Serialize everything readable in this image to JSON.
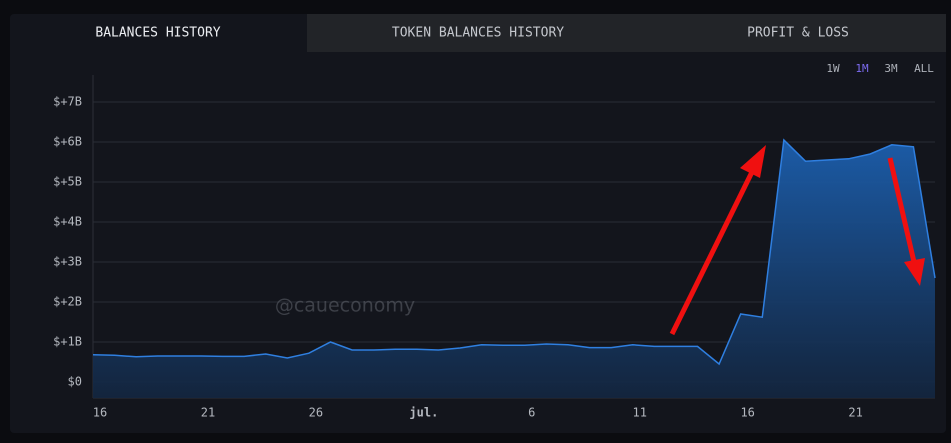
{
  "tabs": [
    "BALANCES HISTORY",
    "TOKEN BALANCES HISTORY",
    "PROFIT & LOSS"
  ],
  "ranges": [
    "1W",
    "1M",
    "3M",
    "ALL"
  ],
  "chart_data": {
    "type": "area",
    "watermark": "@caueconomy",
    "categories": [
      "16",
      null,
      null,
      null,
      null,
      "21",
      null,
      null,
      null,
      null,
      "26",
      null,
      null,
      null,
      null,
      "jul.",
      null,
      null,
      null,
      null,
      "6",
      null,
      null,
      null,
      null,
      "11",
      null,
      null,
      null,
      null,
      "16",
      null,
      null,
      null,
      null,
      "21",
      null,
      null,
      null,
      null
    ],
    "values": [
      0.68,
      0.67,
      0.63,
      0.65,
      0.65,
      0.65,
      0.64,
      0.64,
      0.7,
      0.6,
      0.72,
      1.0,
      0.8,
      0.8,
      0.82,
      0.82,
      0.8,
      0.85,
      0.93,
      0.92,
      0.92,
      0.95,
      0.93,
      0.86,
      0.86,
      0.93,
      0.89,
      0.89,
      0.89,
      0.45,
      1.7,
      1.62,
      6.05,
      5.52,
      5.55,
      5.58,
      5.7,
      5.93,
      5.88,
      2.6
    ],
    "color": "#2f7fe0",
    "ylim": [
      -0.4,
      7.675
    ],
    "yticks": [
      {
        "value": 0,
        "label": "$0"
      },
      {
        "value": 1,
        "label": "$+1B"
      },
      {
        "value": 2,
        "label": "$+2B"
      },
      {
        "value": 3,
        "label": "$+3B"
      },
      {
        "value": 4,
        "label": "$+4B"
      },
      {
        "value": 5,
        "label": "$+5B"
      },
      {
        "value": 6,
        "label": "$+6B"
      },
      {
        "value": 7,
        "label": "$+7B"
      }
    ],
    "grid": true
  }
}
